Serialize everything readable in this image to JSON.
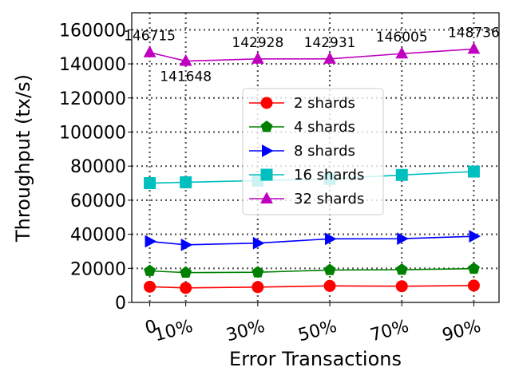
{
  "chart_data": {
    "type": "line",
    "xlabel": "Error Transactions",
    "ylabel": "Throughput (tx/s)",
    "x": [
      "0",
      "10%",
      "30%",
      "50%",
      "70%",
      "90%"
    ],
    "x_values": [
      0,
      10,
      30,
      50,
      70,
      90
    ],
    "ylim": [
      0,
      170000
    ],
    "yticks": [
      0,
      20000,
      40000,
      60000,
      80000,
      100000,
      120000,
      140000,
      160000
    ],
    "grid": "on",
    "legend": "center",
    "series": [
      {
        "name": "2 shards",
        "color": "#ff0000",
        "marker": "circle",
        "values": [
          9200,
          8500,
          9000,
          9700,
          9500,
          9900
        ]
      },
      {
        "name": "4 shards",
        "color": "#008000",
        "marker": "pentagon",
        "values": [
          18500,
          17500,
          17700,
          19000,
          19200,
          19800
        ]
      },
      {
        "name": "8 shards",
        "color": "#0000ff",
        "marker": "triangle-right",
        "values": [
          35800,
          33800,
          34800,
          37300,
          37400,
          38800
        ]
      },
      {
        "name": "16 shards",
        "color": "#00bfbf",
        "marker": "square",
        "values": [
          70000,
          70500,
          71500,
          72500,
          74800,
          76800
        ]
      },
      {
        "name": "32 shards",
        "color": "#bf00bf",
        "marker": "triangle-up",
        "values": [
          146715,
          141648,
          142928,
          142931,
          146005,
          148736
        ],
        "labels": [
          "146715",
          "141648",
          "142928",
          "142931",
          "146005",
          "148736"
        ]
      }
    ]
  }
}
